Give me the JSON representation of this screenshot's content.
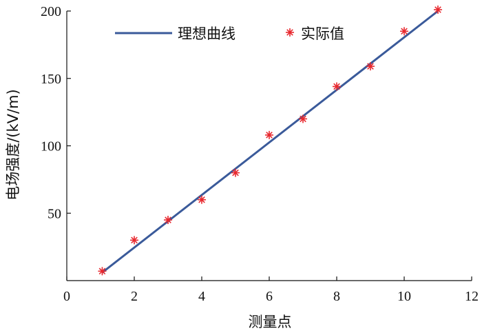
{
  "chart_data": {
    "type": "line",
    "xlabel": "测量点",
    "ylabel": "电场强度/(kV/m)",
    "xlim": [
      0,
      12
    ],
    "ylim": [
      0,
      200
    ],
    "x_ticks": [
      0,
      2,
      4,
      6,
      8,
      10,
      12
    ],
    "y_ticks": [
      50,
      100,
      150,
      200
    ],
    "grid": false,
    "legend_position": "top",
    "series": [
      {
        "name": "理想曲线",
        "style": "line",
        "color": "#3a5a9a",
        "x": [
          1.05,
          11
        ],
        "y": [
          6,
          200
        ]
      },
      {
        "name": "实际值",
        "style": "marker-asterisk",
        "color": "#e8282e",
        "x": [
          1.05,
          2,
          3,
          4,
          5,
          6,
          7,
          8,
          9,
          10,
          11
        ],
        "y": [
          7,
          30,
          45,
          60,
          80,
          108,
          120,
          144,
          159,
          185,
          201
        ]
      }
    ]
  }
}
